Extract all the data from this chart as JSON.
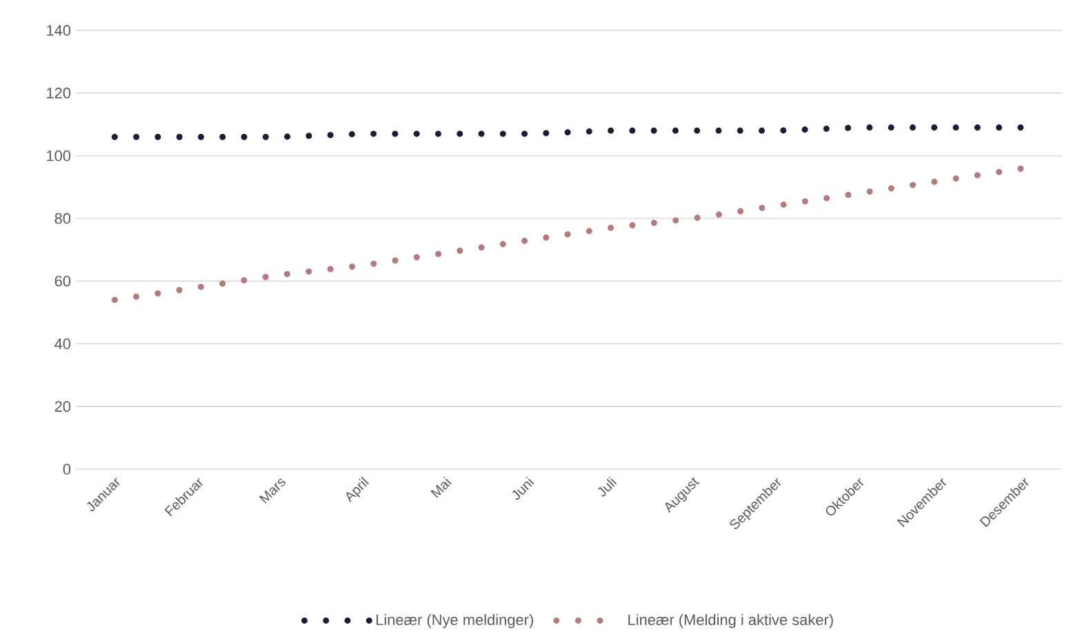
{
  "chart_data": {
    "type": "line",
    "categories": [
      "Januar",
      "Februar",
      "Mars",
      "April",
      "Mai",
      "Juni",
      "Juli",
      "August",
      "September",
      "Oktober",
      "November",
      "Desember"
    ],
    "series": [
      {
        "name": "Lineær (Nye meldinger)",
        "color": "#1e1b36",
        "line_style": "dotted",
        "values": [
          106,
          106,
          106,
          107,
          107,
          107,
          108,
          108,
          108,
          109,
          109,
          109
        ]
      },
      {
        "name": "Lineær (Melding i aktive saker)",
        "color": "#b47a7c",
        "line_style": "dotted",
        "values": [
          54,
          58,
          62,
          65,
          69,
          73,
          77,
          80,
          84,
          88,
          92,
          96
        ]
      }
    ],
    "ylim": [
      0,
      140
    ],
    "yticks": [
      0,
      20,
      40,
      60,
      80,
      100,
      120,
      140
    ],
    "grid": "y",
    "legend": "bottom",
    "marker": "none"
  }
}
